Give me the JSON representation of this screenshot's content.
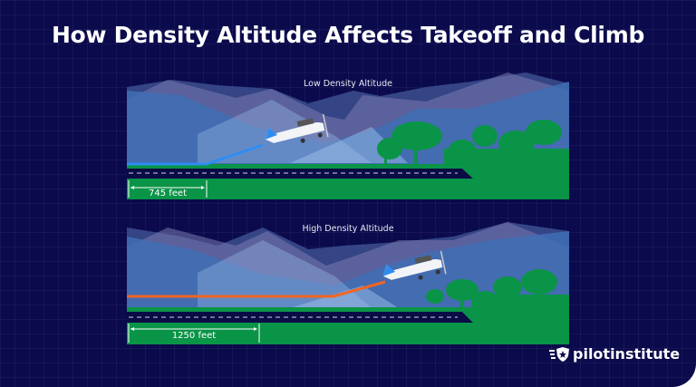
{
  "title": "How Density Altitude Affects Takeoff and Climb",
  "panels": [
    {
      "label": "Low Density Altitude",
      "distance": "745 feet",
      "path_color": "#2f8df0"
    },
    {
      "label": "High Density Altitude",
      "distance": "1250 feet",
      "path_color": "#f26522"
    }
  ],
  "brand": {
    "name": "pilotinstitute",
    "icon": "shield-star-wings-icon"
  },
  "colors": {
    "background": "#0a0a4c",
    "ground": "#0a9447",
    "runway": "#0b0b45"
  }
}
